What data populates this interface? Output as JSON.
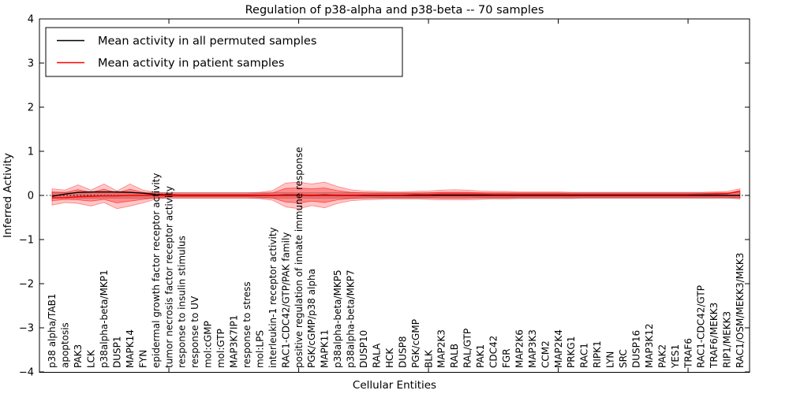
{
  "chart_data": {
    "type": "line",
    "title": "Regulation of p38-alpha and p38-beta -- 70 samples",
    "xlabel": "Cellular Entities",
    "ylabel": "Inferred Activity",
    "ylim": [
      -4,
      4
    ],
    "grid": false,
    "legend_position": "upper left",
    "zero_line_style": "dotted",
    "ytick_values": [
      4,
      3,
      2,
      1,
      0,
      -1,
      -2,
      -3,
      -4
    ],
    "ytick_labels": [
      "4",
      "3",
      "2",
      "1",
      "0",
      "−1",
      "−2",
      "−3",
      "−4"
    ],
    "major_xtick_indices": [
      9,
      19,
      29,
      39,
      49
    ],
    "categories": [
      "p38 alpha/TAB1",
      "apoptosis",
      "PAK3",
      "LCK",
      "p38alpha-beta/MKP1",
      "DUSP1",
      "MAPK14",
      "FYN",
      "epidermal growth factor receptor activity",
      "tumor necrosis factor receptor activity",
      "response to insulin stimulus",
      "response to UV",
      "mol:cGMP",
      "mol:GTP",
      "MAP3K7IP1",
      "response to stress",
      "mol:LPS",
      "interleukin-1 receptor activity",
      "RAC1-CDC42/GTP/PAK family",
      "positive regulation of innate immune response",
      "PGK/cGMP/p38 alpha",
      "MAPK11",
      "p38alpha-beta/MKP5",
      "p38alpha-beta/MKP7",
      "DUSP10",
      "RALA",
      "HCK",
      "DUSP8",
      "PGK/cGMP",
      "BLK",
      "MAP2K3",
      "RALB",
      "RAL/GTP",
      "PAK1",
      "CDC42",
      "FGR",
      "MAP2K6",
      "MAP3K3",
      "CCM2",
      "MAP2K4",
      "PRKG1",
      "RAC1",
      "RIPK1",
      "LYN",
      "SRC",
      "DUSP16",
      "MAP3K12",
      "PAK2",
      "YES1",
      "TRAF6",
      "RAC1-CDC42/GTP",
      "TRAF6/MEKK3",
      "RIP1/MEKK3",
      "RAC1/OSM/MEKK3/MKK3"
    ],
    "series": [
      {
        "name": "Mean activity in all permuted samples",
        "color": "#000000",
        "values": [
          -0.02,
          0.03,
          0.07,
          0.08,
          0.08,
          0.08,
          0.07,
          0.05,
          0.02,
          0.01,
          0,
          0,
          0,
          0,
          0,
          0,
          0,
          0,
          0.01,
          0.01,
          0,
          0.01,
          0,
          0,
          0,
          0,
          0,
          0,
          0,
          0,
          0,
          0,
          0,
          0,
          0,
          0,
          0,
          0,
          0,
          0,
          0,
          0,
          0,
          0,
          0,
          0,
          0,
          0,
          0,
          0,
          0,
          0,
          0,
          0
        ]
      },
      {
        "name": "Mean activity in patient samples",
        "color": "#ff0000",
        "values": [
          -0.06,
          -0.05,
          -0.03,
          -0.02,
          -0.01,
          -0.01,
          0,
          0,
          0,
          0,
          0,
          0,
          0,
          0,
          0,
          0,
          0,
          0,
          0,
          0,
          0,
          0,
          0,
          0,
          0.01,
          0.01,
          0.01,
          0.01,
          0.02,
          0.02,
          0.03,
          0.03,
          0.03,
          0.03,
          0.02,
          0.02,
          0.02,
          0.02,
          0.02,
          0.02,
          0.02,
          0.02,
          0.02,
          0.02,
          0.02,
          0.02,
          0.02,
          0.02,
          0.02,
          0.02,
          0.03,
          0.03,
          0.04,
          0.1
        ]
      }
    ],
    "bands": [
      {
        "name": "permuted-samples-spread",
        "color": "#999999",
        "opacity": 0.45,
        "half_width": 0.06
      },
      {
        "name": "patient-samples-spread-outer",
        "color": "#ff0000",
        "opacity": 0.22,
        "upper": [
          0.15,
          0.12,
          0.24,
          0.12,
          0.26,
          0.1,
          0.26,
          0.12,
          0.07,
          0.06,
          0.06,
          0.06,
          0.06,
          0.06,
          0.06,
          0.06,
          0.07,
          0.11,
          0.28,
          0.3,
          0.26,
          0.3,
          0.2,
          0.13,
          0.1,
          0.09,
          0.08,
          0.08,
          0.09,
          0.1,
          0.12,
          0.13,
          0.12,
          0.1,
          0.09,
          0.09,
          0.08,
          0.08,
          0.08,
          0.08,
          0.07,
          0.07,
          0.07,
          0.07,
          0.07,
          0.07,
          0.07,
          0.07,
          0.07,
          0.07,
          0.07,
          0.08,
          0.09,
          0.15
        ],
        "lower": [
          -0.22,
          -0.16,
          -0.18,
          -0.24,
          -0.16,
          -0.3,
          -0.24,
          -0.17,
          -0.08,
          -0.06,
          -0.06,
          -0.06,
          -0.06,
          -0.06,
          -0.06,
          -0.06,
          -0.07,
          -0.11,
          -0.26,
          -0.3,
          -0.23,
          -0.28,
          -0.18,
          -0.12,
          -0.1,
          -0.09,
          -0.08,
          -0.08,
          -0.08,
          -0.09,
          -0.1,
          -0.1,
          -0.1,
          -0.09,
          -0.08,
          -0.08,
          -0.07,
          -0.07,
          -0.07,
          -0.07,
          -0.07,
          -0.06,
          -0.06,
          -0.06,
          -0.06,
          -0.06,
          -0.06,
          -0.06,
          -0.06,
          -0.06,
          -0.06,
          -0.06,
          -0.06,
          -0.08
        ]
      },
      {
        "name": "patient-samples-spread-inner",
        "color": "#ff0000",
        "opacity": 0.3,
        "upper": [
          0.08,
          0.07,
          0.13,
          0.07,
          0.14,
          0.06,
          0.14,
          0.07,
          0.04,
          0.03,
          0.03,
          0.03,
          0.03,
          0.03,
          0.03,
          0.03,
          0.04,
          0.06,
          0.16,
          0.17,
          0.15,
          0.17,
          0.11,
          0.07,
          0.06,
          0.05,
          0.05,
          0.05,
          0.05,
          0.06,
          0.07,
          0.07,
          0.07,
          0.06,
          0.05,
          0.05,
          0.05,
          0.05,
          0.05,
          0.05,
          0.04,
          0.04,
          0.04,
          0.04,
          0.04,
          0.04,
          0.04,
          0.04,
          0.04,
          0.04,
          0.04,
          0.05,
          0.05,
          0.09
        ],
        "lower": [
          -0.12,
          -0.09,
          -0.1,
          -0.13,
          -0.09,
          -0.17,
          -0.13,
          -0.09,
          -0.05,
          -0.03,
          -0.03,
          -0.03,
          -0.03,
          -0.03,
          -0.03,
          -0.03,
          -0.04,
          -0.06,
          -0.15,
          -0.17,
          -0.13,
          -0.16,
          -0.1,
          -0.07,
          -0.06,
          -0.05,
          -0.05,
          -0.05,
          -0.05,
          -0.05,
          -0.06,
          -0.06,
          -0.06,
          -0.05,
          -0.05,
          -0.05,
          -0.04,
          -0.04,
          -0.04,
          -0.04,
          -0.04,
          -0.04,
          -0.04,
          -0.04,
          -0.04,
          -0.04,
          -0.04,
          -0.04,
          -0.04,
          -0.04,
          -0.04,
          -0.04,
          -0.04,
          -0.05
        ]
      }
    ]
  }
}
